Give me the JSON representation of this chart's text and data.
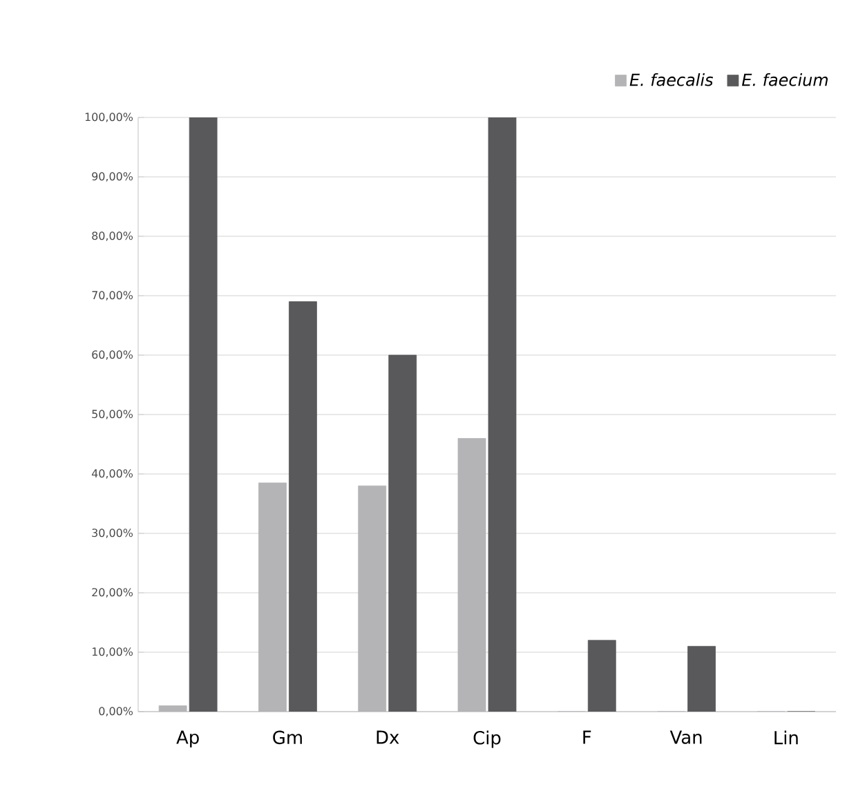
{
  "chart_data": {
    "type": "bar",
    "categories": [
      "Ap",
      "Gm",
      "Dx",
      "Cip",
      "F",
      "Van",
      "Lin"
    ],
    "series": [
      {
        "name": "E. faecalis",
        "color": "#b4b4b6",
        "values": [
          1,
          38.5,
          38,
          46,
          0,
          0,
          0
        ]
      },
      {
        "name": "E. faecium",
        "color": "#59595b",
        "values": [
          100,
          69,
          60,
          100,
          12,
          11,
          0
        ]
      }
    ],
    "ylim": [
      0,
      100
    ],
    "yticks": [
      {
        "value": 0,
        "label": "0,00%"
      },
      {
        "value": 10,
        "label": "10,00%"
      },
      {
        "value": 20,
        "label": "20,00%"
      },
      {
        "value": 30,
        "label": "30,00%"
      },
      {
        "value": 40,
        "label": "40,00%"
      },
      {
        "value": 50,
        "label": "50,00%"
      },
      {
        "value": 60,
        "label": "60,00%"
      },
      {
        "value": 70,
        "label": "70,00%"
      },
      {
        "value": 80,
        "label": "80,00%"
      },
      {
        "value": 90,
        "label": "90,00%"
      },
      {
        "value": 100,
        "label": "100,00%"
      }
    ],
    "grid": "y",
    "legend": "top right"
  }
}
